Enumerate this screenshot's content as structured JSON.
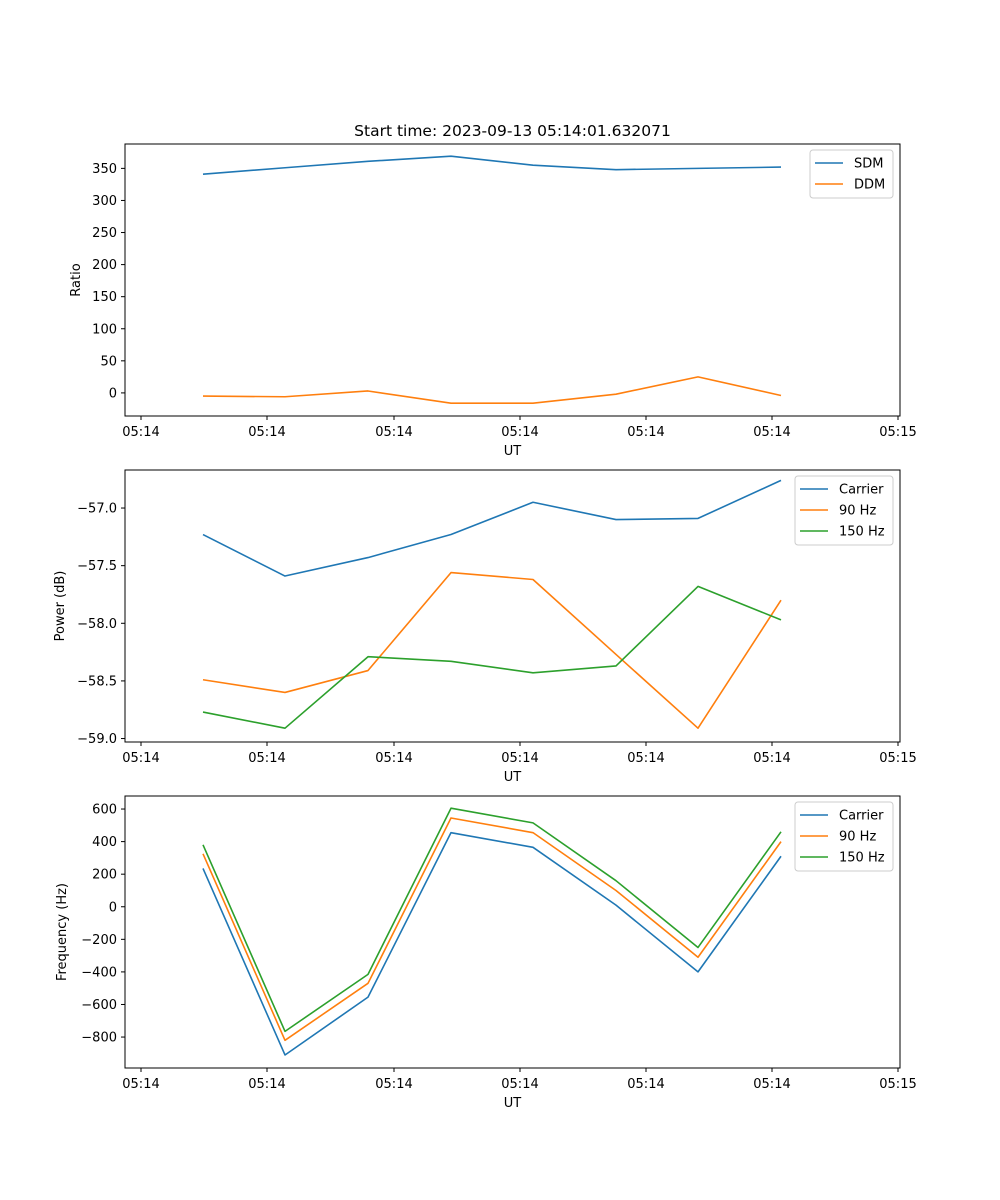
{
  "chart_data": [
    {
      "type": "line",
      "title": "Start time: 2023-09-13 05:14:01.632071",
      "xlabel": "UT",
      "ylabel": "Ratio",
      "x_tick_labels": [
        "05:14",
        "05:14",
        "05:14",
        "05:14",
        "05:14",
        "05:14",
        "05:15"
      ],
      "ylim": [
        -36,
        388
      ],
      "y_ticks": [
        0,
        50,
        100,
        150,
        200,
        250,
        300,
        350
      ],
      "y_tick_labels": [
        "0",
        "50",
        "100",
        "150",
        "200",
        "250",
        "300",
        "350"
      ],
      "legend_position": "top-right",
      "series": [
        {
          "name": "SDM",
          "color": "#1f77b4",
          "values": [
            341,
            351,
            361,
            369,
            355,
            348,
            350,
            352
          ]
        },
        {
          "name": "DDM",
          "color": "#ff7f0e",
          "values": [
            -5,
            -6,
            3,
            -16,
            -16,
            -2,
            25,
            -4
          ]
        }
      ]
    },
    {
      "type": "line",
      "title": "",
      "xlabel": "UT",
      "ylabel": "Power (dB)",
      "x_tick_labels": [
        "05:14",
        "05:14",
        "05:14",
        "05:14",
        "05:14",
        "05:14",
        "05:15"
      ],
      "ylim": [
        -59.03,
        -56.67
      ],
      "y_ticks": [
        -59.0,
        -58.5,
        -58.0,
        -57.5,
        -57.0
      ],
      "y_tick_labels": [
        "−59.0",
        "−58.5",
        "−58.0",
        "−57.5",
        "−57.0"
      ],
      "legend_position": "top-right",
      "series": [
        {
          "name": "Carrier",
          "color": "#1f77b4",
          "values": [
            -57.23,
            -57.59,
            -57.43,
            -57.23,
            -56.95,
            -57.1,
            -57.09,
            -56.76
          ]
        },
        {
          "name": "90 Hz",
          "color": "#ff7f0e",
          "values": [
            -58.49,
            -58.6,
            -58.41,
            -57.56,
            -57.62,
            -58.27,
            -58.91,
            -57.8
          ]
        },
        {
          "name": "150 Hz",
          "color": "#2ca02c",
          "values": [
            -58.77,
            -58.91,
            -58.29,
            -58.33,
            -58.43,
            -58.37,
            -57.68,
            -57.97
          ]
        }
      ]
    },
    {
      "type": "line",
      "title": "",
      "xlabel": "UT",
      "ylabel": "Frequency (Hz)",
      "x_tick_labels": [
        "05:14",
        "05:14",
        "05:14",
        "05:14",
        "05:14",
        "05:14",
        "05:15"
      ],
      "ylim": [
        -990,
        680
      ],
      "y_ticks": [
        -800,
        -600,
        -400,
        -200,
        0,
        200,
        400,
        600
      ],
      "y_tick_labels": [
        "−800",
        "−600",
        "−400",
        "−200",
        "0",
        "200",
        "400",
        "600"
      ],
      "legend_position": "top-right",
      "series": [
        {
          "name": "Carrier",
          "color": "#1f77b4",
          "values": [
            235,
            -910,
            -555,
            455,
            365,
            10,
            -400,
            310
          ]
        },
        {
          "name": "90 Hz",
          "color": "#ff7f0e",
          "values": [
            325,
            -820,
            -470,
            545,
            455,
            100,
            -310,
            400
          ]
        },
        {
          "name": "150 Hz",
          "color": "#2ca02c",
          "values": [
            380,
            -765,
            -415,
            605,
            515,
            160,
            -250,
            460
          ]
        }
      ]
    }
  ]
}
